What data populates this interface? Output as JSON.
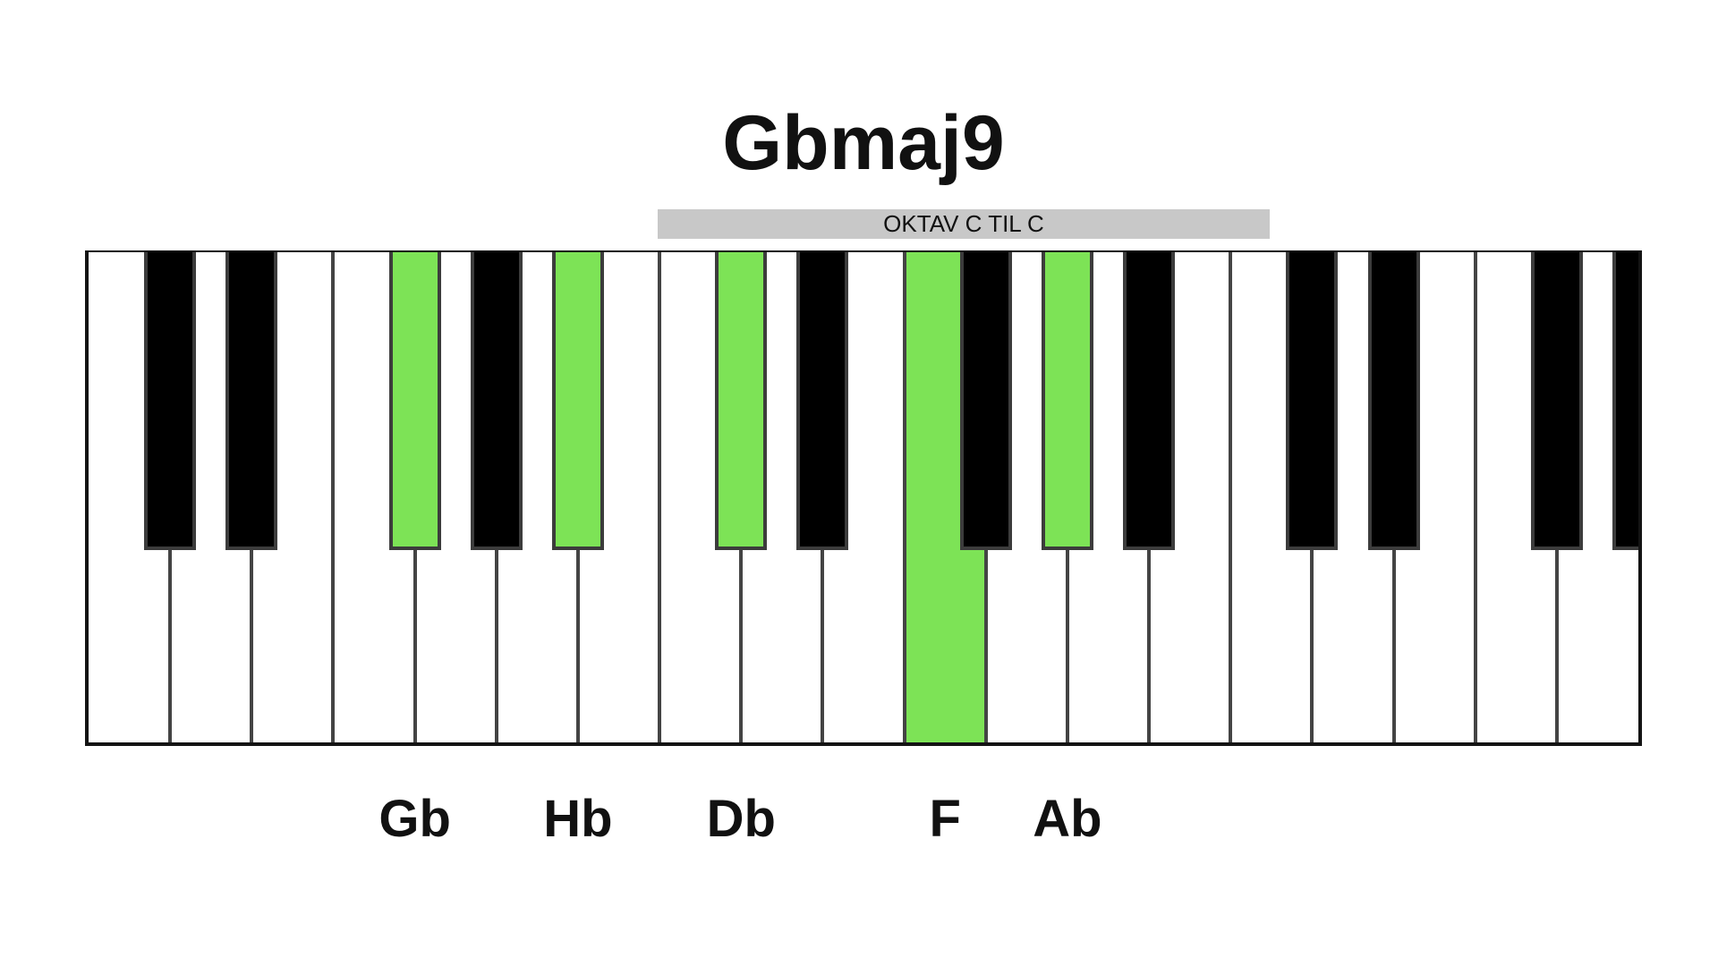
{
  "title": "Gbmaj9",
  "octave_label": "OKTAV C TIL C",
  "colors": {
    "highlight": "#7de356",
    "white_key": "#ffffff",
    "black_key": "#000000"
  },
  "keyboard": {
    "first_white_key": "C",
    "white_key_count": 19,
    "trailing_black_key": true,
    "highlighted_keys": [
      {
        "white_index": 3,
        "type": "black"
      },
      {
        "white_index": 5,
        "type": "black"
      },
      {
        "white_index": 7,
        "type": "black"
      },
      {
        "white_index": 10,
        "type": "white"
      },
      {
        "white_index": 11,
        "type": "black"
      }
    ]
  },
  "note_labels": [
    {
      "text": "Gb",
      "white_index": 3,
      "type": "black"
    },
    {
      "text": "Hb",
      "white_index": 5,
      "type": "black"
    },
    {
      "text": "Db",
      "white_index": 7,
      "type": "black"
    },
    {
      "text": "F",
      "white_index": 10,
      "type": "white"
    },
    {
      "text": "Ab",
      "white_index": 11,
      "type": "black"
    }
  ]
}
